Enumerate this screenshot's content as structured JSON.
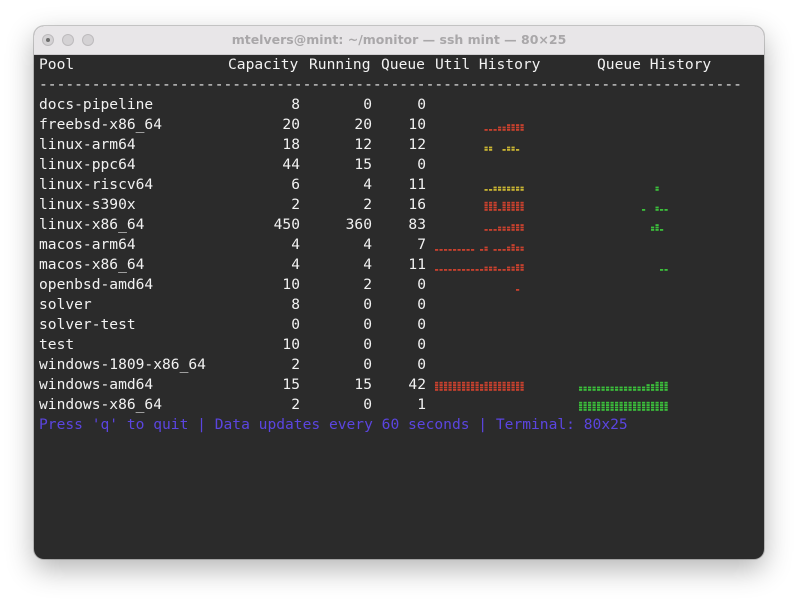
{
  "window": {
    "title": "mtelvers@mint: ~/monitor — ssh mint — 80×25"
  },
  "table": {
    "headers": {
      "pool": "Pool",
      "capacity": "Capacity",
      "running": "Running",
      "queue": "Queue",
      "util": "Util History",
      "queue_history": "Queue History"
    },
    "separator": "--------------------------------------------------------------------------------",
    "rows": [
      {
        "pool": "docs-pipeline",
        "capacity": "8",
        "running": "0",
        "queue": "0",
        "util": [
          0,
          0,
          0,
          0,
          0,
          0,
          0,
          0,
          0,
          0,
          0,
          0,
          0,
          0,
          0,
          0,
          0,
          0,
          0,
          0
        ],
        "qhist": [
          0,
          0,
          0,
          0,
          0,
          0,
          0,
          0,
          0,
          0,
          0,
          0,
          0,
          0,
          0,
          0,
          0,
          0,
          0,
          0
        ]
      },
      {
        "pool": "freebsd-x86_64",
        "capacity": "20",
        "running": "20",
        "queue": "10",
        "util": [
          0,
          0,
          0,
          0,
          0,
          0,
          0,
          0,
          0,
          0,
          0,
          1,
          1,
          1,
          2,
          2,
          3,
          3,
          3,
          3
        ],
        "qhist": [
          0,
          0,
          0,
          0,
          0,
          0,
          0,
          0,
          0,
          0,
          0,
          0,
          0,
          0,
          0,
          0,
          0,
          0,
          0,
          0
        ]
      },
      {
        "pool": "linux-arm64",
        "capacity": "18",
        "running": "12",
        "queue": "12",
        "util": [
          0,
          0,
          0,
          0,
          0,
          0,
          0,
          0,
          0,
          0,
          0,
          2,
          2,
          0,
          0,
          1,
          2,
          2,
          1,
          0
        ],
        "qhist": [
          0,
          0,
          0,
          0,
          0,
          0,
          0,
          0,
          0,
          0,
          0,
          0,
          0,
          0,
          0,
          0,
          0,
          0,
          0,
          0
        ]
      },
      {
        "pool": "linux-ppc64",
        "capacity": "44",
        "running": "15",
        "queue": "0",
        "util": [
          0,
          0,
          0,
          0,
          0,
          0,
          0,
          0,
          0,
          0,
          0,
          0,
          0,
          0,
          0,
          0,
          0,
          0,
          0,
          0
        ],
        "qhist": [
          0,
          0,
          0,
          0,
          0,
          0,
          0,
          0,
          0,
          0,
          0,
          0,
          0,
          0,
          0,
          0,
          0,
          0,
          0,
          0
        ]
      },
      {
        "pool": "linux-riscv64",
        "capacity": "6",
        "running": "4",
        "queue": "11",
        "util": [
          0,
          0,
          0,
          0,
          0,
          0,
          0,
          0,
          0,
          0,
          0,
          1,
          1,
          2,
          2,
          2,
          2,
          2,
          2,
          2
        ],
        "qhist": [
          0,
          0,
          0,
          0,
          0,
          0,
          0,
          0,
          0,
          0,
          0,
          0,
          0,
          0,
          0,
          0,
          0,
          2,
          0,
          0
        ]
      },
      {
        "pool": "linux-s390x",
        "capacity": "2",
        "running": "2",
        "queue": "16",
        "util": [
          0,
          0,
          0,
          0,
          0,
          0,
          0,
          0,
          0,
          0,
          0,
          4,
          4,
          4,
          1,
          4,
          4,
          4,
          4,
          4
        ],
        "qhist": [
          0,
          0,
          0,
          0,
          0,
          0,
          0,
          0,
          0,
          0,
          0,
          0,
          0,
          0,
          1,
          0,
          0,
          2,
          1,
          1
        ]
      },
      {
        "pool": "linux-x86_64",
        "capacity": "450",
        "running": "360",
        "queue": "83",
        "util": [
          0,
          0,
          0,
          0,
          0,
          0,
          0,
          0,
          0,
          0,
          0,
          1,
          1,
          1,
          2,
          2,
          2,
          3,
          3,
          3
        ],
        "qhist": [
          0,
          0,
          0,
          0,
          0,
          0,
          0,
          0,
          0,
          0,
          0,
          0,
          0,
          0,
          0,
          0,
          2,
          3,
          1,
          0
        ]
      },
      {
        "pool": "macos-arm64",
        "capacity": "4",
        "running": "4",
        "queue": "7",
        "util": [
          1,
          1,
          1,
          1,
          1,
          1,
          1,
          1,
          1,
          0,
          1,
          2,
          0,
          1,
          1,
          1,
          2,
          3,
          2,
          2
        ],
        "qhist": [
          0,
          0,
          0,
          0,
          0,
          0,
          0,
          0,
          0,
          0,
          0,
          0,
          0,
          0,
          0,
          0,
          0,
          0,
          0,
          0
        ]
      },
      {
        "pool": "macos-x86_64",
        "capacity": "4",
        "running": "4",
        "queue": "11",
        "util": [
          1,
          1,
          1,
          1,
          1,
          1,
          1,
          1,
          1,
          1,
          1,
          2,
          2,
          2,
          1,
          1,
          2,
          2,
          3,
          3
        ],
        "qhist": [
          0,
          0,
          0,
          0,
          0,
          0,
          0,
          0,
          0,
          0,
          0,
          0,
          0,
          0,
          0,
          0,
          0,
          0,
          1,
          1
        ]
      },
      {
        "pool": "openbsd-amd64",
        "capacity": "10",
        "running": "2",
        "queue": "0",
        "util": [
          0,
          0,
          0,
          0,
          0,
          0,
          0,
          0,
          0,
          0,
          0,
          0,
          0,
          0,
          0,
          0,
          0,
          0,
          1,
          0
        ],
        "qhist": [
          0,
          0,
          0,
          0,
          0,
          0,
          0,
          0,
          0,
          0,
          0,
          0,
          0,
          0,
          0,
          0,
          0,
          0,
          0,
          0
        ]
      },
      {
        "pool": "solver",
        "capacity": "8",
        "running": "0",
        "queue": "0",
        "util": [
          0,
          0,
          0,
          0,
          0,
          0,
          0,
          0,
          0,
          0,
          0,
          0,
          0,
          0,
          0,
          0,
          0,
          0,
          0,
          0
        ],
        "qhist": [
          0,
          0,
          0,
          0,
          0,
          0,
          0,
          0,
          0,
          0,
          0,
          0,
          0,
          0,
          0,
          0,
          0,
          0,
          0,
          0
        ]
      },
      {
        "pool": "solver-test",
        "capacity": "0",
        "running": "0",
        "queue": "0",
        "util": [
          0,
          0,
          0,
          0,
          0,
          0,
          0,
          0,
          0,
          0,
          0,
          0,
          0,
          0,
          0,
          0,
          0,
          0,
          0,
          0
        ],
        "qhist": [
          0,
          0,
          0,
          0,
          0,
          0,
          0,
          0,
          0,
          0,
          0,
          0,
          0,
          0,
          0,
          0,
          0,
          0,
          0,
          0
        ]
      },
      {
        "pool": "test",
        "capacity": "10",
        "running": "0",
        "queue": "0",
        "util": [
          0,
          0,
          0,
          0,
          0,
          0,
          0,
          0,
          0,
          0,
          0,
          0,
          0,
          0,
          0,
          0,
          0,
          0,
          0,
          0
        ],
        "qhist": [
          0,
          0,
          0,
          0,
          0,
          0,
          0,
          0,
          0,
          0,
          0,
          0,
          0,
          0,
          0,
          0,
          0,
          0,
          0,
          0
        ]
      },
      {
        "pool": "windows-1809-x86_64",
        "capacity": "2",
        "running": "0",
        "queue": "0",
        "util": [
          0,
          0,
          0,
          0,
          0,
          0,
          0,
          0,
          0,
          0,
          0,
          0,
          0,
          0,
          0,
          0,
          0,
          0,
          0,
          0
        ],
        "qhist": [
          0,
          0,
          0,
          0,
          0,
          0,
          0,
          0,
          0,
          0,
          0,
          0,
          0,
          0,
          0,
          0,
          0,
          0,
          0,
          0
        ]
      },
      {
        "pool": "windows-amd64",
        "capacity": "15",
        "running": "15",
        "queue": "42",
        "util": [
          4,
          4,
          4,
          4,
          4,
          4,
          4,
          4,
          4,
          4,
          3,
          4,
          4,
          4,
          4,
          4,
          4,
          4,
          4,
          4
        ],
        "qhist": [
          2,
          2,
          2,
          2,
          2,
          2,
          2,
          2,
          2,
          2,
          2,
          2,
          2,
          2,
          2,
          3,
          3,
          4,
          4,
          4
        ]
      },
      {
        "pool": "windows-x86_64",
        "capacity": "2",
        "running": "0",
        "queue": "1",
        "util": [
          0,
          0,
          0,
          0,
          0,
          0,
          0,
          0,
          0,
          0,
          0,
          0,
          0,
          0,
          0,
          0,
          0,
          0,
          0,
          0
        ],
        "qhist": [
          4,
          4,
          4,
          4,
          4,
          4,
          4,
          4,
          4,
          4,
          4,
          4,
          4,
          4,
          4,
          4,
          4,
          4,
          4,
          4
        ]
      }
    ]
  },
  "footer": {
    "text": "Press 'q' to quit | Data updates every 60 seconds | Terminal: 80x25"
  },
  "colors": {
    "terminal_bg": "#2b2b2b",
    "text": "#f2f2f2",
    "footer": "#5b45e0",
    "util_high": "#c9412e",
    "util_mid": "#c8b432",
    "queue_green": "#3bbf3b"
  }
}
